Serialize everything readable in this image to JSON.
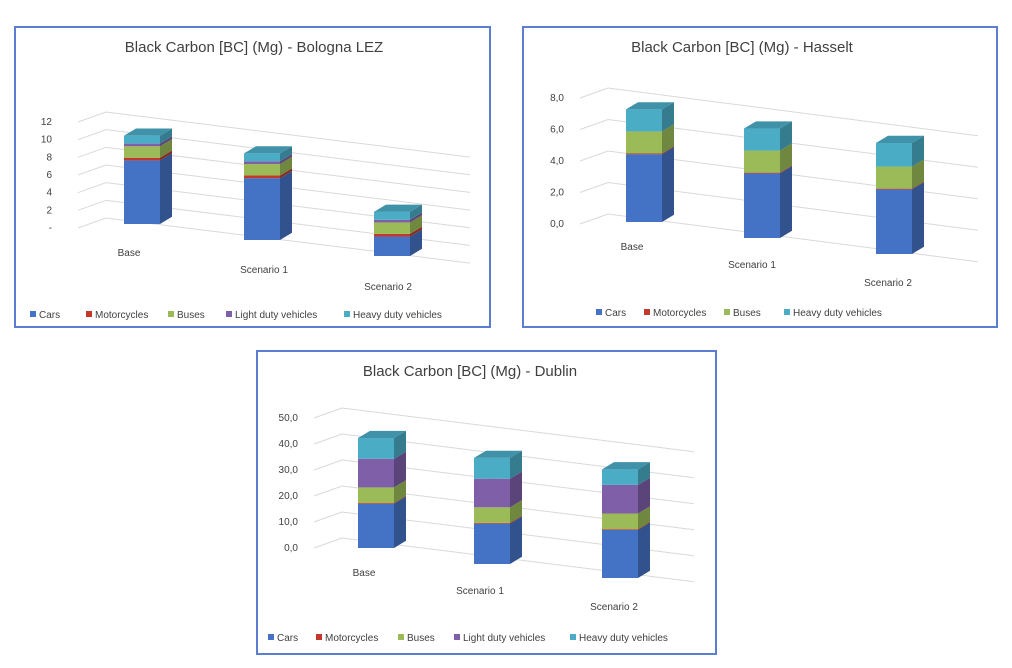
{
  "chart_data": [
    {
      "type": "bar",
      "stacked": true,
      "title": "Black Carbon [BC] (Mg) -  Bologna LEZ",
      "categories": [
        "Base",
        "Scenario 1",
        "Scenario 2"
      ],
      "ylim": [
        0,
        12
      ],
      "yticks": [
        "-",
        "2",
        "4",
        "6",
        "8",
        "10",
        "12"
      ],
      "series": [
        {
          "name": "Cars",
          "color": "#4472c4",
          "values": [
            7.2,
            7.0,
            2.2
          ]
        },
        {
          "name": "Motorcycles",
          "color": "#c0392b",
          "values": [
            0.3,
            0.3,
            0.3
          ]
        },
        {
          "name": "Buses",
          "color": "#9bbb59",
          "values": [
            1.3,
            1.3,
            1.3
          ]
        },
        {
          "name": "Light duty vehicles",
          "color": "#7f5fa8",
          "values": [
            0.3,
            0.3,
            0.3
          ]
        },
        {
          "name": "Heavy duty vehicles",
          "color": "#4bacc6",
          "values": [
            0.9,
            0.9,
            0.9
          ]
        }
      ],
      "legend": "bottom",
      "grid": true
    },
    {
      "type": "bar",
      "stacked": true,
      "title": "Black Carbon [BC] (Mg) -  Hasselt",
      "categories": [
        "Base",
        "Scenario 1",
        "Scenario 2"
      ],
      "ylim": [
        0,
        8
      ],
      "yticks": [
        "0,0",
        "2,0",
        "4,0",
        "6,0",
        "8,0"
      ],
      "series": [
        {
          "name": "Cars",
          "color": "#4472c4",
          "values": [
            4.3,
            4.1,
            4.1
          ]
        },
        {
          "name": "Motorcycles",
          "color": "#c0392b",
          "values": [
            0.05,
            0.05,
            0.05
          ]
        },
        {
          "name": "Buses",
          "color": "#9bbb59",
          "values": [
            1.4,
            1.4,
            1.4
          ]
        },
        {
          "name": "Heavy duty vehicles",
          "color": "#4bacc6",
          "values": [
            1.4,
            1.4,
            1.5
          ]
        }
      ],
      "legend": "bottom",
      "grid": true
    },
    {
      "type": "bar",
      "stacked": true,
      "title": "Black Carbon [BC] (Mg) -  Dublin",
      "categories": [
        "Base",
        "Scenario 1",
        "Scenario 2"
      ],
      "ylim": [
        0,
        50
      ],
      "yticks": [
        "0,0",
        "10,0",
        "20,0",
        "30,0",
        "40,0",
        "50,0"
      ],
      "series": [
        {
          "name": "Cars",
          "color": "#4472c4",
          "values": [
            17.0,
            15.5,
            18.5
          ]
        },
        {
          "name": "Motorcycles",
          "color": "#c0392b",
          "values": [
            0.3,
            0.3,
            0.3
          ]
        },
        {
          "name": "Buses",
          "color": "#9bbb59",
          "values": [
            6.0,
            6.0,
            6.0
          ]
        },
        {
          "name": "Light duty vehicles",
          "color": "#7f5fa8",
          "values": [
            11.0,
            11.0,
            11.0
          ]
        },
        {
          "name": "Heavy duty vehicles",
          "color": "#4bacc6",
          "values": [
            8.0,
            8.0,
            6.0
          ]
        }
      ],
      "legend": "bottom",
      "grid": true
    }
  ]
}
